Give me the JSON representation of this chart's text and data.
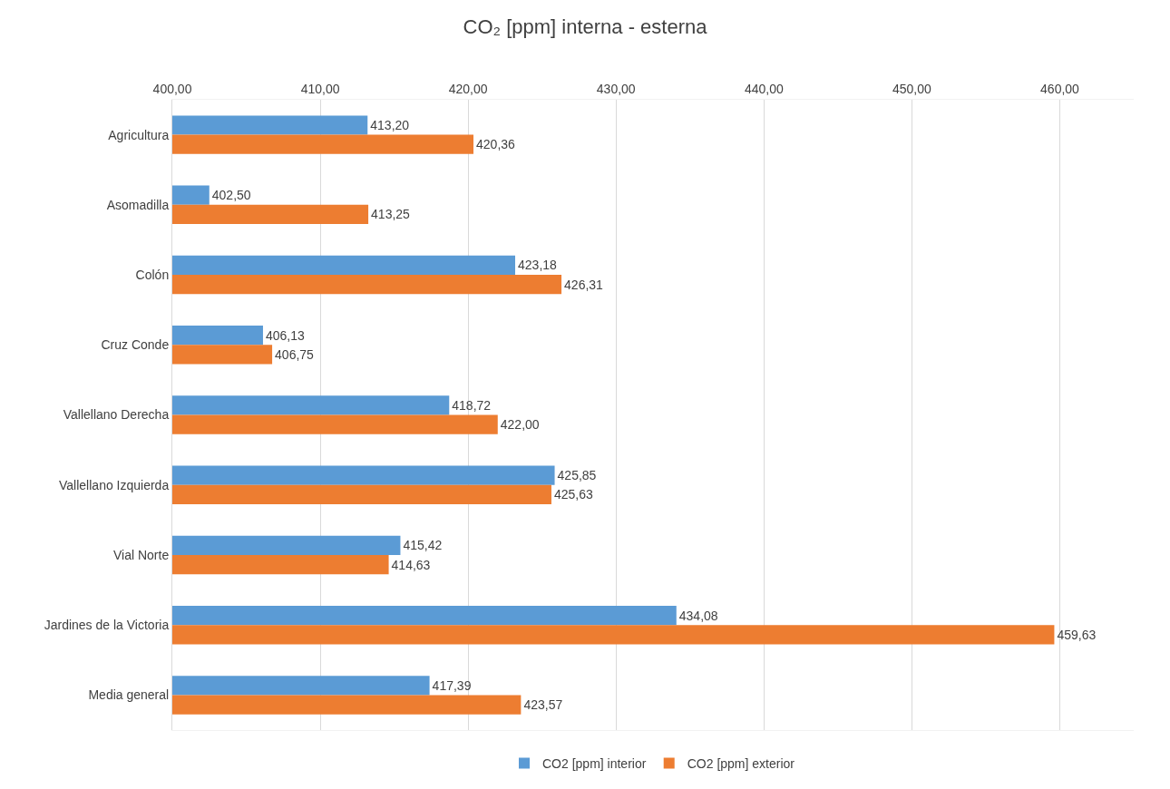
{
  "chart_data": {
    "type": "bar",
    "orientation": "horizontal",
    "title": "CO₂ [ppm] interna - esterna",
    "categories": [
      "Agricultura",
      "Asomadilla",
      "Colón",
      "Cruz Conde",
      "Vallellano Derecha",
      "Vallellano Izquierda",
      "Vial Norte",
      "Jardines de la Victoria",
      "Media general"
    ],
    "series": [
      {
        "name": "CO2 [ppm] interior",
        "color": "#5b9bd5",
        "values": [
          413.2,
          402.5,
          423.18,
          406.13,
          418.72,
          425.85,
          415.42,
          434.08,
          417.39
        ],
        "value_labels": [
          "413,20",
          "402,50",
          "423,18",
          "406,13",
          "418,72",
          "425,85",
          "415,42",
          "434,08",
          "417,39"
        ]
      },
      {
        "name": "CO2 [ppm] exterior",
        "color": "#ed7d31",
        "values": [
          420.36,
          413.25,
          426.31,
          406.75,
          422.0,
          425.63,
          414.63,
          459.63,
          423.57
        ],
        "value_labels": [
          "420,36",
          "413,25",
          "426,31",
          "406,75",
          "422,00",
          "425,63",
          "414,63",
          "459,63",
          "423,57"
        ]
      }
    ],
    "xlim": [
      400,
      465
    ],
    "xticks": [
      {
        "value": 400,
        "label": "400,00"
      },
      {
        "value": 410,
        "label": "410,00"
      },
      {
        "value": 420,
        "label": "420,00"
      },
      {
        "value": 430,
        "label": "430,00"
      },
      {
        "value": 440,
        "label": "440,00"
      },
      {
        "value": 450,
        "label": "450,00"
      },
      {
        "value": 460,
        "label": "460,00"
      }
    ],
    "grid": "x",
    "legend": "bottom"
  }
}
